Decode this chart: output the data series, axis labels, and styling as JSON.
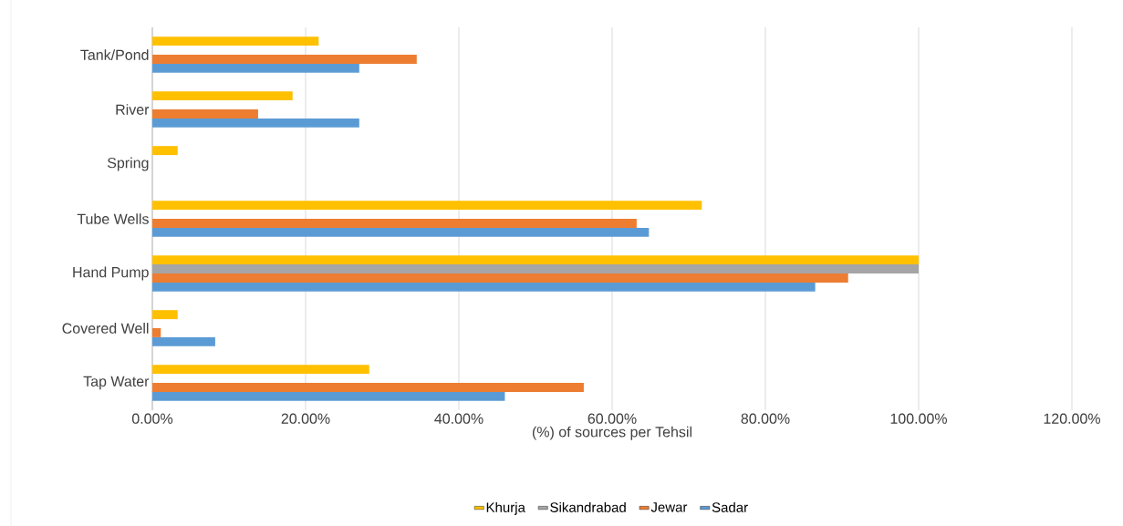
{
  "chart_data": {
    "type": "bar",
    "orientation": "horizontal",
    "xlabel": "(%) of sources per Tehsil",
    "categories": [
      "Tank/Pond",
      "River",
      "Spring",
      "Tube Wells",
      "Hand Pump",
      "Covered Well",
      "Tap Water"
    ],
    "series": [
      {
        "name": "Khurja",
        "color": "#ffc000",
        "values": [
          21.7,
          18.3,
          3.3,
          71.7,
          100,
          3.3,
          28.3
        ]
      },
      {
        "name": "Sikandrabad",
        "color": "#a5a5a5",
        "values": [
          0,
          0,
          0,
          0,
          100,
          0,
          0
        ]
      },
      {
        "name": "Jewar",
        "color": "#ed7d31",
        "values": [
          34.5,
          13.8,
          0,
          63.2,
          90.8,
          1.1,
          56.3
        ]
      },
      {
        "name": "Sadar",
        "color": "#5b9bd5",
        "values": [
          27.0,
          27.0,
          0,
          64.8,
          86.5,
          8.2,
          46.0
        ]
      }
    ],
    "xlim": [
      0,
      120
    ],
    "xticks": [
      {
        "value": 0,
        "label": "0.00%"
      },
      {
        "value": 20,
        "label": "20.00%"
      },
      {
        "value": 40,
        "label": "40.00%"
      },
      {
        "value": 60,
        "label": "60.00%"
      },
      {
        "value": 80,
        "label": "80.00%"
      },
      {
        "value": 100,
        "label": "100.00%"
      },
      {
        "value": 120,
        "label": "120.00%"
      }
    ],
    "grid": "x",
    "legend": "bottom"
  }
}
